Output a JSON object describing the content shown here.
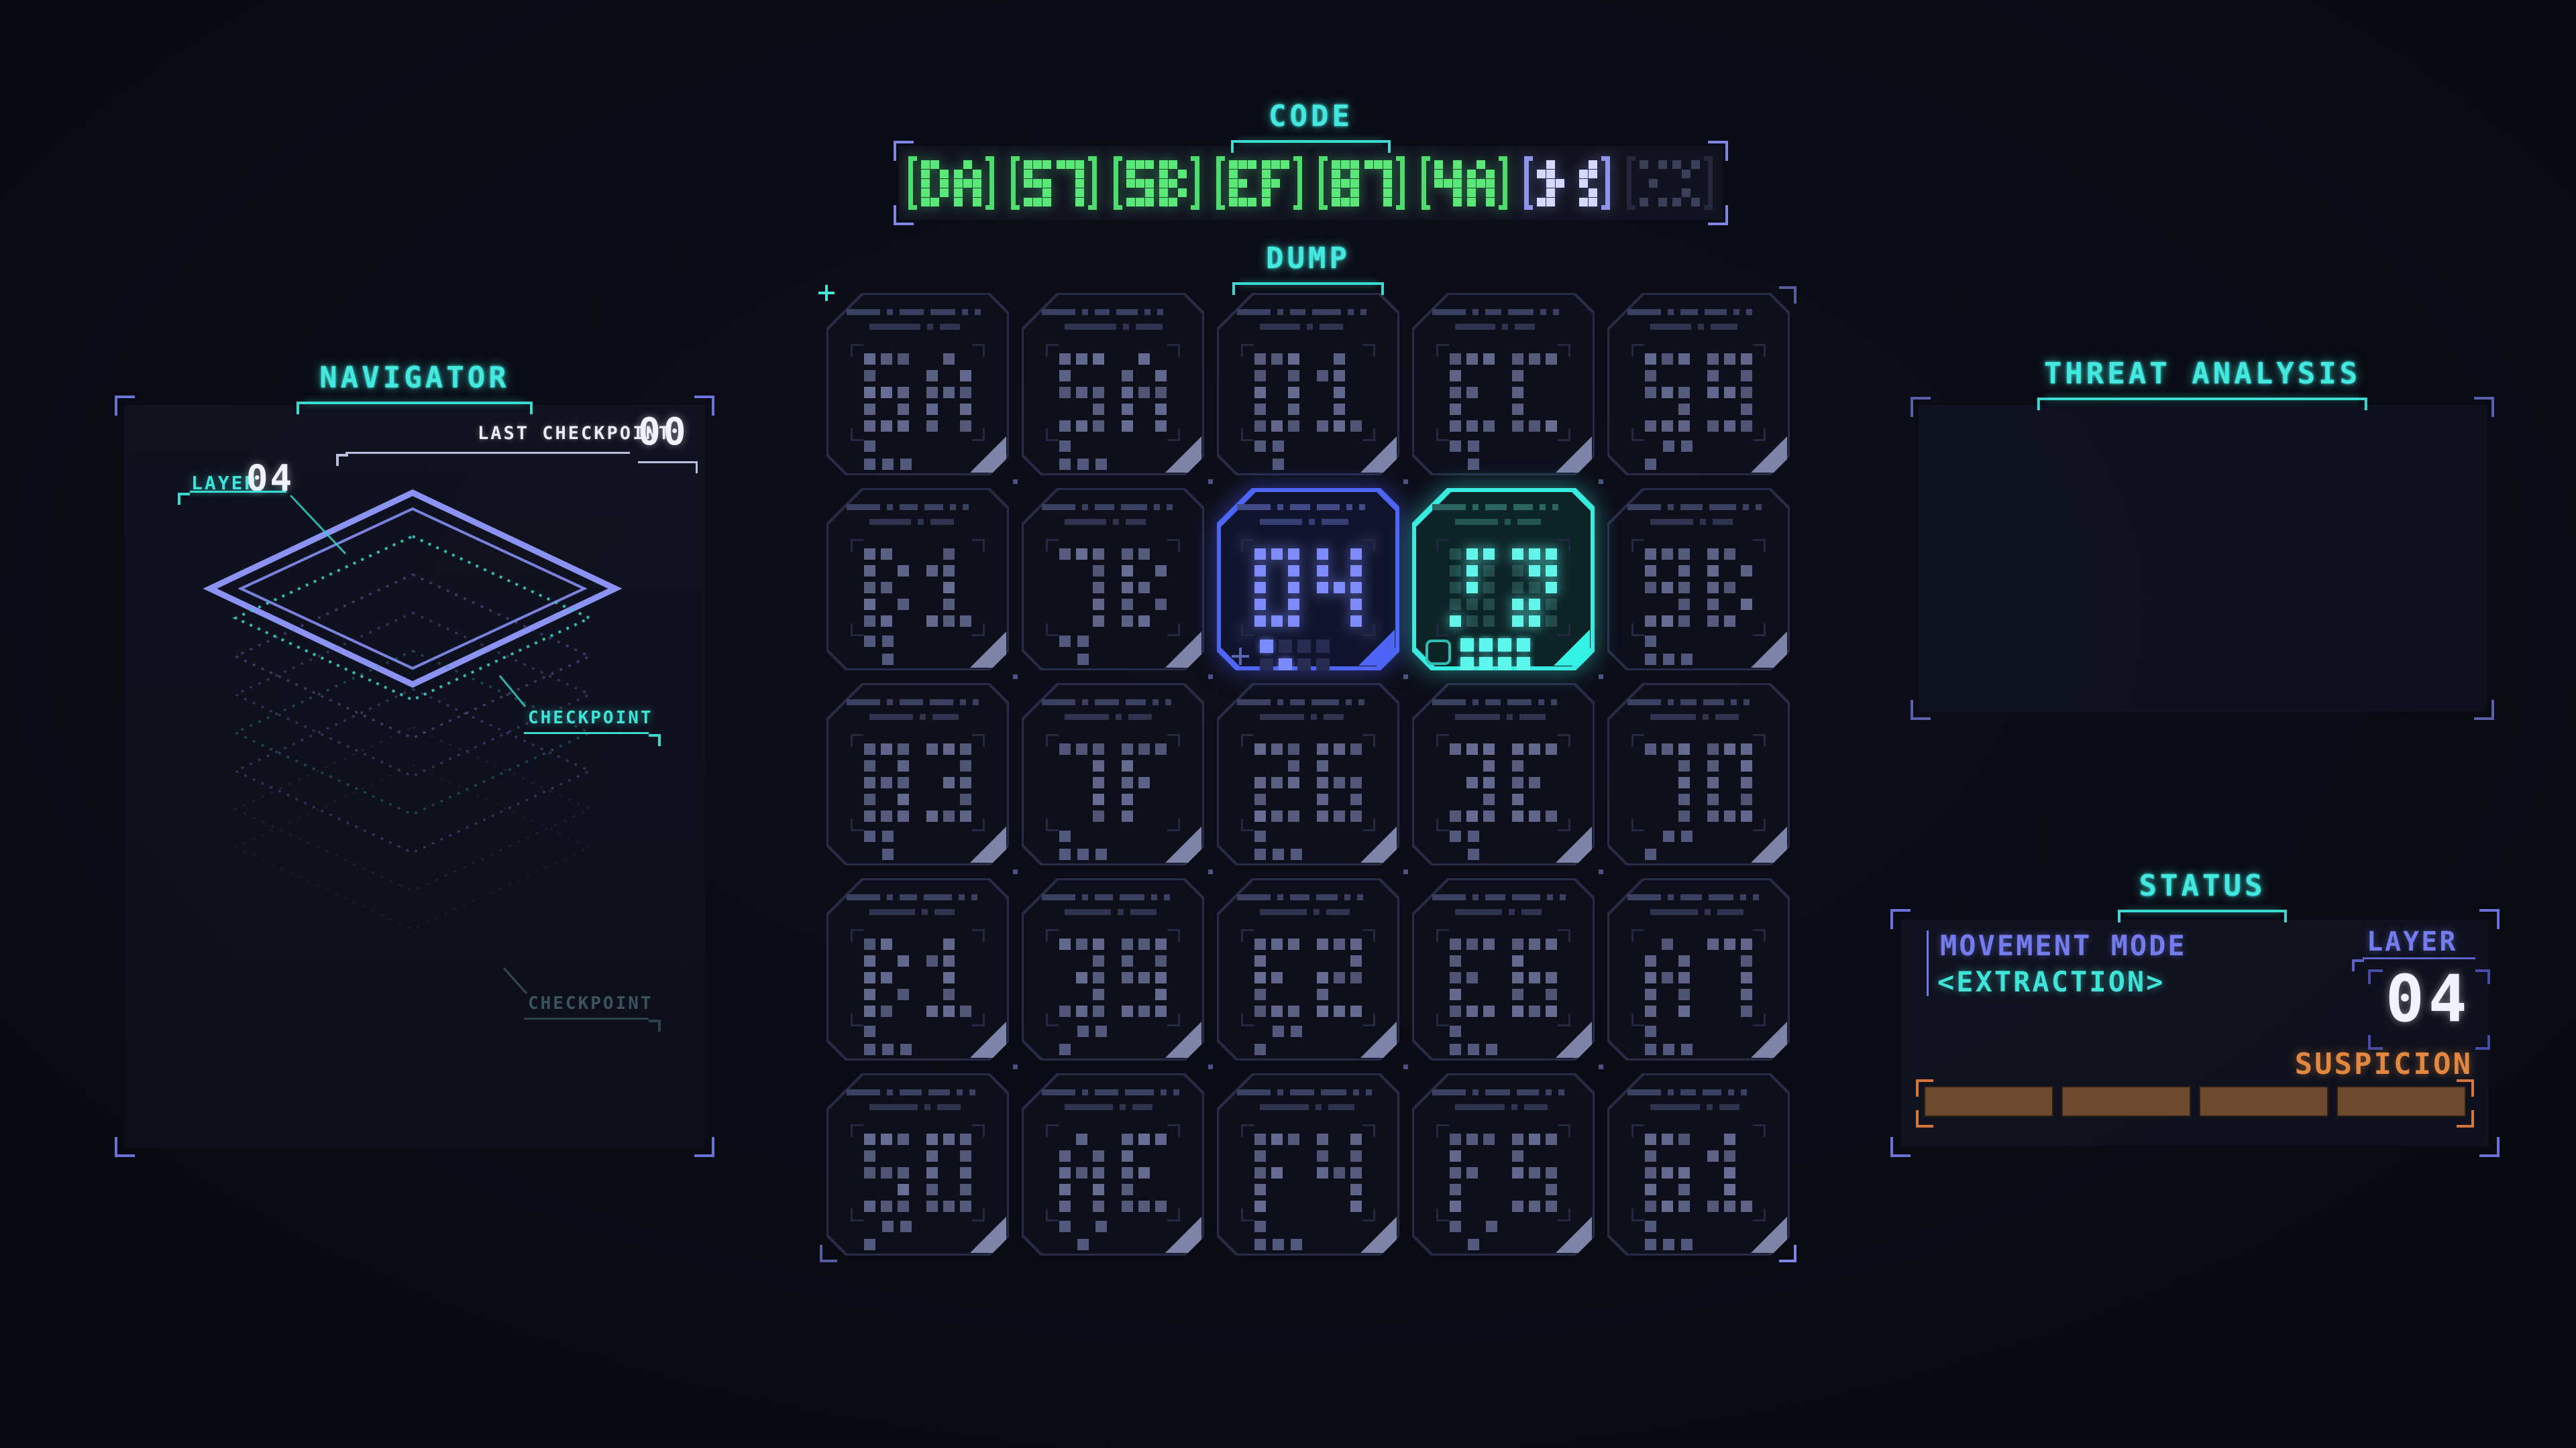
{
  "colors": {
    "accent_cyan": "#43e8df",
    "accent_green": "#57e87a",
    "accent_blue": "#4d64f4",
    "accent_periwinkle": "#747ced",
    "accent_orange": "#e2873f",
    "background": "#0a0b13"
  },
  "code": {
    "title": "CODE",
    "slots": [
      {
        "value": "DA",
        "state": "filled"
      },
      {
        "value": "57",
        "state": "filled"
      },
      {
        "value": "5B",
        "state": "filled"
      },
      {
        "value": "EF",
        "state": "filled"
      },
      {
        "value": "87",
        "state": "filled"
      },
      {
        "value": "4A",
        "state": "filled"
      },
      {
        "value": "",
        "state": "decoding",
        "glitch": {
          "left": [
            "010",
            "110",
            "011",
            "010",
            "110"
          ],
          "right": [
            "001",
            "011",
            "010",
            "001",
            "011"
          ]
        }
      },
      {
        "value": "",
        "state": "empty",
        "glitch": {
          "left": [
            "101",
            "000",
            "010",
            "000",
            "101"
          ],
          "right": [
            "101",
            "010",
            "000",
            "010",
            "101"
          ]
        }
      }
    ]
  },
  "dump": {
    "title": "DUMP",
    "grid": [
      [
        "6A",
        "5A",
        "01",
        "EC",
        "59"
      ],
      [
        "B1",
        "7B",
        "04",
        "",
        "9B"
      ],
      [
        "83",
        "7F",
        "26",
        "3E",
        "70"
      ],
      [
        "B1",
        "39",
        "E2",
        "E6",
        "A7"
      ],
      [
        "50",
        "AE",
        "F4",
        "F5",
        "61"
      ]
    ],
    "cursor_blue": {
      "row": 1,
      "col": 2,
      "value": "04"
    },
    "cursor_cyan": {
      "row": 1,
      "col": 3,
      "state": "scrambling",
      "glitch": {
        "left": [
          "011",
          "010",
          "010",
          "000",
          "100"
        ],
        "right": [
          "111",
          "011",
          "001",
          "110",
          "110"
        ]
      }
    }
  },
  "navigator": {
    "title": "NAVIGATOR",
    "last_checkpoint_label": "LAST CHECKPOINT",
    "last_checkpoint_value": "00",
    "layer_label": "LAYER",
    "layer_value": "04",
    "checkpoint_label_1": "CHECKPOINT",
    "checkpoint_label_2": "CHECKPOINT",
    "layers": [
      {
        "role": "current"
      },
      {
        "role": "checkpoint"
      },
      {
        "role": "layer"
      },
      {
        "role": "layer"
      },
      {
        "role": "checkpoint-dim"
      },
      {
        "role": "layer"
      },
      {
        "role": "faint"
      },
      {
        "role": "faint"
      }
    ]
  },
  "threat": {
    "title": "THREAT ANALYSIS"
  },
  "status": {
    "title": "STATUS",
    "movement_mode_label": "MOVEMENT MODE",
    "movement_mode_value": "<EXTRACTION>",
    "layer_label": "LAYER",
    "layer_value": "04",
    "suspicion_label": "SUSPICION",
    "suspicion": {
      "segments": 4,
      "filled": 0
    }
  }
}
